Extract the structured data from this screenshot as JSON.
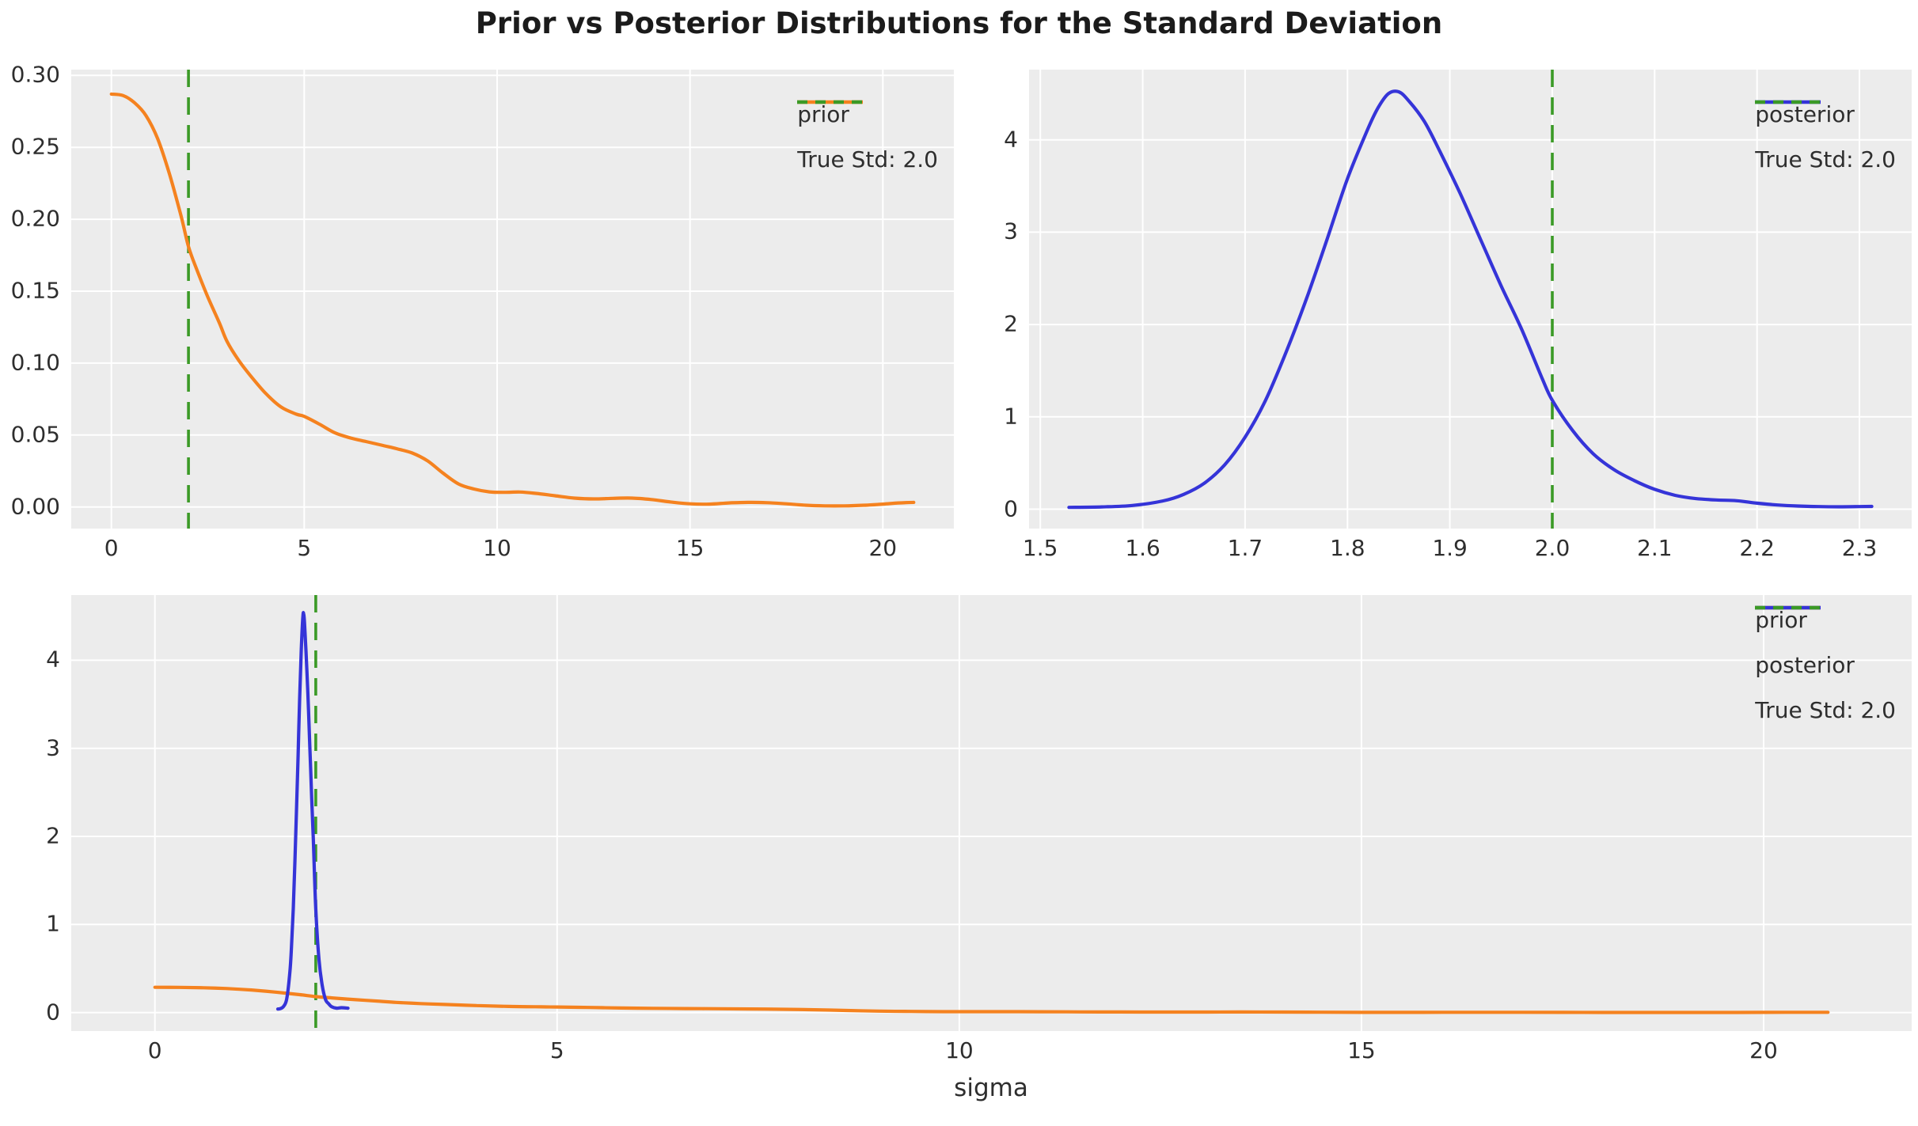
{
  "title": "Prior vs Posterior Distributions for the Standard Deviation",
  "xlabel": "sigma",
  "chart_data": {
    "type": "line",
    "title": "Prior vs Posterior Distributions for the Standard Deviation",
    "xlabel": "sigma",
    "style": "ggplot-gray-background-white-grid",
    "colors": {
      "prior": "#f5821f",
      "posterior": "#3534d8",
      "true_std": "#3b9a26",
      "axes_bg": "#ececec",
      "grid": "#ffffff",
      "tick_text": "#2e2e2e",
      "figure_bg": "#ffffff"
    },
    "true_std_value": 2.0,
    "subplots": [
      {
        "name": "prior",
        "xlim": [
          -1.04,
          21.84
        ],
        "ylim": [
          -0.015,
          0.304
        ],
        "xticks": [
          {
            "v": 0,
            "label": "0"
          },
          {
            "v": 5,
            "label": "5"
          },
          {
            "v": 10,
            "label": "10"
          },
          {
            "v": 15,
            "label": "15"
          },
          {
            "v": 20,
            "label": "20"
          }
        ],
        "yticks": [
          {
            "v": 0.0,
            "label": "0.00"
          },
          {
            "v": 0.05,
            "label": "0.05"
          },
          {
            "v": 0.1,
            "label": "0.10"
          },
          {
            "v": 0.15,
            "label": "0.15"
          },
          {
            "v": 0.2,
            "label": "0.20"
          },
          {
            "v": 0.25,
            "label": "0.25"
          },
          {
            "v": 0.3,
            "label": "0.30"
          }
        ],
        "vline": {
          "x": 2.0,
          "label": "True Std: 2.0",
          "color": "true_std"
        },
        "legend": [
          {
            "label": "prior",
            "series": "prior",
            "dashed": false
          },
          {
            "label": "True Std: 2.0",
            "series": "true_std",
            "dashed": true
          }
        ],
        "series": [
          {
            "name": "prior",
            "color": "prior",
            "points": [
              [
                0,
                0.287
              ],
              [
                0.3,
                0.286
              ],
              [
                0.6,
                0.281
              ],
              [
                0.9,
                0.272
              ],
              [
                1.2,
                0.256
              ],
              [
                1.5,
                0.232
              ],
              [
                1.8,
                0.203
              ],
              [
                2.0,
                0.181
              ],
              [
                2.2,
                0.166
              ],
              [
                2.5,
                0.146
              ],
              [
                2.8,
                0.128
              ],
              [
                3.0,
                0.115
              ],
              [
                3.3,
                0.102
              ],
              [
                3.6,
                0.0915
              ],
              [
                4.0,
                0.079
              ],
              [
                4.4,
                0.0695
              ],
              [
                4.8,
                0.0645
              ],
              [
                5.0,
                0.063
              ],
              [
                5.4,
                0.0575
              ],
              [
                5.8,
                0.0515
              ],
              [
                6.2,
                0.048
              ],
              [
                6.6,
                0.0455
              ],
              [
                7.0,
                0.043
              ],
              [
                7.4,
                0.0405
              ],
              [
                7.8,
                0.0375
              ],
              [
                8.2,
                0.032
              ],
              [
                8.6,
                0.0235
              ],
              [
                9.0,
                0.016
              ],
              [
                9.4,
                0.0125
              ],
              [
                9.8,
                0.0105
              ],
              [
                10.2,
                0.0102
              ],
              [
                10.6,
                0.0104
              ],
              [
                11.0,
                0.0095
              ],
              [
                11.5,
                0.0078
              ],
              [
                12.0,
                0.0062
              ],
              [
                12.5,
                0.0056
              ],
              [
                13.0,
                0.006
              ],
              [
                13.5,
                0.0062
              ],
              [
                14.0,
                0.0052
              ],
              [
                14.5,
                0.0035
              ],
              [
                15.0,
                0.0022
              ],
              [
                15.5,
                0.002
              ],
              [
                16.0,
                0.0028
              ],
              [
                16.5,
                0.0032
              ],
              [
                17.0,
                0.003
              ],
              [
                17.5,
                0.0022
              ],
              [
                18.0,
                0.0012
              ],
              [
                18.5,
                0.0008
              ],
              [
                19.0,
                0.0008
              ],
              [
                19.5,
                0.0012
              ],
              [
                20.0,
                0.002
              ],
              [
                20.4,
                0.0028
              ],
              [
                20.8,
                0.0032
              ]
            ]
          }
        ]
      },
      {
        "name": "posterior",
        "xlim": [
          1.489,
          2.351
        ],
        "ylim": [
          -0.21,
          4.76
        ],
        "xticks": [
          {
            "v": 1.5,
            "label": "1.5"
          },
          {
            "v": 1.6,
            "label": "1.6"
          },
          {
            "v": 1.7,
            "label": "1.7"
          },
          {
            "v": 1.8,
            "label": "1.8"
          },
          {
            "v": 1.9,
            "label": "1.9"
          },
          {
            "v": 2.0,
            "label": "2.0"
          },
          {
            "v": 2.1,
            "label": "2.1"
          },
          {
            "v": 2.2,
            "label": "2.2"
          },
          {
            "v": 2.3,
            "label": "2.3"
          }
        ],
        "yticks": [
          {
            "v": 0,
            "label": "0"
          },
          {
            "v": 1,
            "label": "1"
          },
          {
            "v": 2,
            "label": "2"
          },
          {
            "v": 3,
            "label": "3"
          },
          {
            "v": 4,
            "label": "4"
          }
        ],
        "vline": {
          "x": 2.0,
          "label": "True Std: 2.0",
          "color": "true_std"
        },
        "legend": [
          {
            "label": "posterior",
            "series": "posterior",
            "dashed": false
          },
          {
            "label": "True Std: 2.0",
            "series": "true_std",
            "dashed": true
          }
        ],
        "series": [
          {
            "name": "posterior",
            "color": "posterior",
            "points": [
              [
                1.528,
                0.02
              ],
              [
                1.56,
                0.025
              ],
              [
                1.59,
                0.04
              ],
              [
                1.62,
                0.09
              ],
              [
                1.64,
                0.16
              ],
              [
                1.66,
                0.28
              ],
              [
                1.68,
                0.48
              ],
              [
                1.7,
                0.78
              ],
              [
                1.72,
                1.18
              ],
              [
                1.74,
                1.7
              ],
              [
                1.76,
                2.28
              ],
              [
                1.78,
                2.92
              ],
              [
                1.8,
                3.58
              ],
              [
                1.82,
                4.12
              ],
              [
                1.83,
                4.35
              ],
              [
                1.84,
                4.5
              ],
              [
                1.85,
                4.52
              ],
              [
                1.86,
                4.42
              ],
              [
                1.875,
                4.2
              ],
              [
                1.89,
                3.88
              ],
              [
                1.91,
                3.42
              ],
              [
                1.93,
                2.92
              ],
              [
                1.95,
                2.42
              ],
              [
                1.97,
                1.95
              ],
              [
                1.99,
                1.42
              ],
              [
                2.0,
                1.18
              ],
              [
                2.02,
                0.85
              ],
              [
                2.04,
                0.6
              ],
              [
                2.06,
                0.43
              ],
              [
                2.08,
                0.31
              ],
              [
                2.1,
                0.215
              ],
              [
                2.12,
                0.15
              ],
              [
                2.14,
                0.115
              ],
              [
                2.16,
                0.1
              ],
              [
                2.18,
                0.092
              ],
              [
                2.2,
                0.065
              ],
              [
                2.22,
                0.045
              ],
              [
                2.24,
                0.034
              ],
              [
                2.26,
                0.028
              ],
              [
                2.28,
                0.026
              ],
              [
                2.3,
                0.028
              ],
              [
                2.312,
                0.03
              ]
            ]
          }
        ]
      },
      {
        "name": "combined",
        "xlim": [
          -1.04,
          21.84
        ],
        "ylim": [
          -0.21,
          4.74
        ],
        "xticks": [
          {
            "v": 0,
            "label": "0"
          },
          {
            "v": 5,
            "label": "5"
          },
          {
            "v": 10,
            "label": "10"
          },
          {
            "v": 15,
            "label": "15"
          },
          {
            "v": 20,
            "label": "20"
          }
        ],
        "yticks": [
          {
            "v": 0,
            "label": "0"
          },
          {
            "v": 1,
            "label": "1"
          },
          {
            "v": 2,
            "label": "2"
          },
          {
            "v": 3,
            "label": "3"
          },
          {
            "v": 4,
            "label": "4"
          }
        ],
        "vline": {
          "x": 2.0,
          "label": "True Std: 2.0",
          "color": "true_std"
        },
        "legend": [
          {
            "label": "prior",
            "series": "prior",
            "dashed": false
          },
          {
            "label": "posterior",
            "series": "posterior",
            "dashed": false
          },
          {
            "label": "True Std: 2.0",
            "series": "true_std",
            "dashed": true
          }
        ],
        "series": [
          {
            "name": "prior",
            "color": "prior",
            "points": [
              [
                0,
                0.287
              ],
              [
                0.3,
                0.286
              ],
              [
                0.6,
                0.281
              ],
              [
                0.9,
                0.272
              ],
              [
                1.2,
                0.256
              ],
              [
                1.5,
                0.232
              ],
              [
                1.8,
                0.203
              ],
              [
                2.0,
                0.181
              ],
              [
                2.2,
                0.166
              ],
              [
                2.5,
                0.146
              ],
              [
                2.8,
                0.128
              ],
              [
                3.0,
                0.115
              ],
              [
                3.3,
                0.102
              ],
              [
                3.6,
                0.0915
              ],
              [
                4.0,
                0.079
              ],
              [
                4.4,
                0.0695
              ],
              [
                4.8,
                0.0645
              ],
              [
                5.0,
                0.063
              ],
              [
                5.4,
                0.0575
              ],
              [
                5.8,
                0.0515
              ],
              [
                6.2,
                0.048
              ],
              [
                6.6,
                0.0455
              ],
              [
                7.0,
                0.043
              ],
              [
                7.4,
                0.0405
              ],
              [
                7.8,
                0.0375
              ],
              [
                8.2,
                0.032
              ],
              [
                8.6,
                0.0235
              ],
              [
                9.0,
                0.016
              ],
              [
                9.4,
                0.0125
              ],
              [
                9.8,
                0.0105
              ],
              [
                10.2,
                0.0102
              ],
              [
                10.6,
                0.0104
              ],
              [
                11.0,
                0.0095
              ],
              [
                11.5,
                0.0078
              ],
              [
                12.0,
                0.0062
              ],
              [
                12.5,
                0.0056
              ],
              [
                13.0,
                0.006
              ],
              [
                13.5,
                0.0062
              ],
              [
                14.0,
                0.0052
              ],
              [
                14.5,
                0.0035
              ],
              [
                15.0,
                0.0022
              ],
              [
                15.5,
                0.002
              ],
              [
                16.0,
                0.0028
              ],
              [
                16.5,
                0.0032
              ],
              [
                17.0,
                0.003
              ],
              [
                17.5,
                0.0022
              ],
              [
                18.0,
                0.0012
              ],
              [
                18.5,
                0.0008
              ],
              [
                19.0,
                0.0008
              ],
              [
                19.5,
                0.0012
              ],
              [
                20.0,
                0.002
              ],
              [
                20.4,
                0.0028
              ],
              [
                20.8,
                0.0032
              ]
            ]
          },
          {
            "name": "posterior",
            "color": "posterior",
            "points": [
              [
                1.528,
                0.04
              ],
              [
                1.56,
                0.045
              ],
              [
                1.6,
                0.07
              ],
              [
                1.64,
                0.16
              ],
              [
                1.68,
                0.48
              ],
              [
                1.7,
                0.78
              ],
              [
                1.72,
                1.18
              ],
              [
                1.74,
                1.7
              ],
              [
                1.76,
                2.28
              ],
              [
                1.78,
                2.92
              ],
              [
                1.8,
                3.58
              ],
              [
                1.82,
                4.12
              ],
              [
                1.84,
                4.5
              ],
              [
                1.85,
                4.52
              ],
              [
                1.86,
                4.42
              ],
              [
                1.89,
                3.88
              ],
              [
                1.91,
                3.42
              ],
              [
                1.93,
                2.92
              ],
              [
                1.95,
                2.42
              ],
              [
                1.97,
                1.95
              ],
              [
                2.0,
                1.18
              ],
              [
                2.04,
                0.6
              ],
              [
                2.08,
                0.31
              ],
              [
                2.12,
                0.15
              ],
              [
                2.16,
                0.1
              ],
              [
                2.2,
                0.065
              ],
              [
                2.26,
                0.05
              ],
              [
                2.32,
                0.055
              ],
              [
                2.4,
                0.05
              ]
            ]
          }
        ]
      }
    ]
  }
}
